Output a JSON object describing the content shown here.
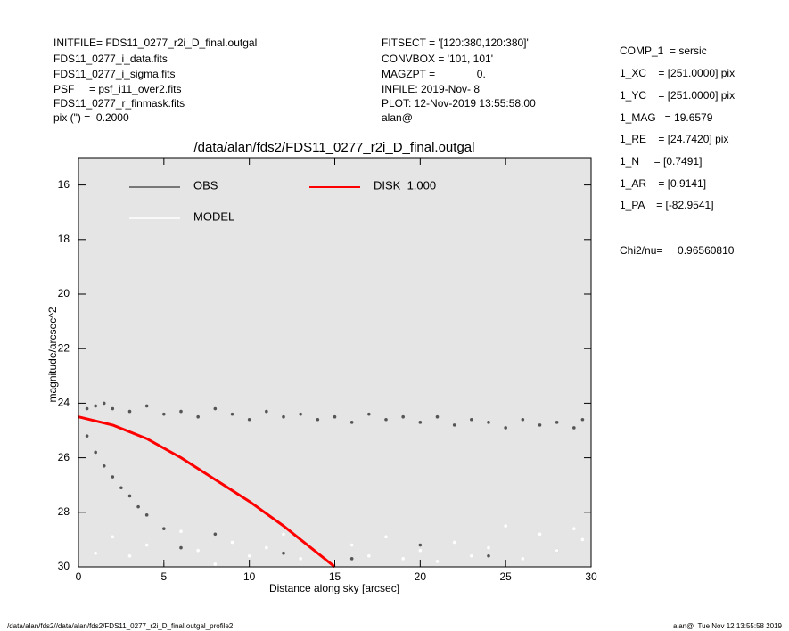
{
  "header": {
    "left": [
      "INITFILE= FDS11_0277_r2i_D_final.outgal",
      "FDS11_0277_i_data.fits",
      "FDS11_0277_i_sigma.fits",
      "PSF     = psf_i11_over2.fits",
      "FDS11_0277_r_finmask.fits",
      "pix (\") =  0.2000"
    ],
    "middle": [
      "FITSECT = '[120:380,120:380]'",
      "CONVBOX = '101, 101'",
      "MAGZPT =              0.",
      "INFILE: 2019-Nov- 8",
      "PLOT: 12-Nov-2019 13:55:58.00",
      "alan@"
    ],
    "right": [
      "COMP_1  = sersic",
      "1_XC    = [251.0000] pix",
      "1_YC    = [251.0000] pix",
      "1_MAG   = 19.6579",
      "1_RE    = [24.7420] pix",
      "1_N     = [0.7491]",
      "1_AR    = [0.9141]",
      "1_PA    = [-82.9541]",
      "Chi2/nu=     0.96560810"
    ]
  },
  "footer": {
    "left": "/data/alan/fds2//data/alan/fds2/FDS11_0277_r2i_D_final.outgal_profile2",
    "right": "alan@  Tue Nov 12 13:55:58 2019"
  },
  "chart_data": {
    "type": "scatter",
    "title": "/data/alan/fds2/FDS11_0277_r2i_D_final.outgal",
    "x_label": "Distance along sky [arcsec]",
    "y_label": "magnitude/arcsec^2",
    "xlim": [
      0,
      30
    ],
    "xticks": [
      0,
      5,
      10,
      15,
      20,
      25,
      30
    ],
    "ylim": [
      30,
      15
    ],
    "yticks": [
      16,
      18,
      20,
      22,
      24,
      26,
      28,
      30
    ],
    "series": [
      {
        "name": "OBS",
        "color": "#555555",
        "x": [
          0.5,
          1,
          1.5,
          2,
          3,
          4,
          5,
          6,
          7,
          8,
          9,
          10,
          11,
          12,
          13,
          14,
          15,
          16,
          17,
          18,
          19,
          20,
          21,
          22,
          23,
          24,
          25,
          26,
          27,
          28,
          29,
          29.5,
          0.5,
          1,
          1.5,
          2,
          2.5,
          3,
          3.5,
          4,
          5,
          6,
          8,
          12,
          16,
          20,
          24,
          28
        ],
        "y": [
          24.2,
          24.1,
          24.0,
          24.2,
          24.3,
          24.1,
          24.4,
          24.3,
          24.5,
          24.2,
          24.4,
          24.6,
          24.3,
          24.5,
          24.4,
          24.6,
          24.5,
          24.7,
          24.4,
          24.6,
          24.5,
          24.7,
          24.5,
          24.8,
          24.6,
          24.7,
          24.9,
          24.6,
          24.8,
          24.7,
          24.9,
          24.6,
          25.2,
          25.8,
          26.3,
          26.7,
          27.1,
          27.4,
          27.8,
          28.1,
          28.6,
          29.3,
          28.8,
          29.5,
          29.7,
          29.2,
          29.6,
          29.4
        ]
      },
      {
        "name": "MODEL",
        "color": "#ffffff",
        "x": [
          1,
          2,
          3,
          4,
          5,
          6,
          7,
          8,
          9,
          10,
          11,
          12,
          13,
          14,
          15,
          16,
          17,
          18,
          19,
          20,
          21,
          22,
          23,
          24,
          25,
          26,
          27,
          28,
          29,
          29.5
        ],
        "y": [
          29.5,
          28.9,
          29.6,
          29.2,
          29.8,
          28.7,
          29.4,
          29.9,
          29.1,
          29.6,
          29.3,
          28.8,
          29.7,
          29.5,
          29.8,
          29.2,
          29.6,
          28.9,
          29.7,
          29.4,
          29.8,
          29.1,
          29.6,
          29.3,
          28.5,
          29.7,
          28.8,
          29.4,
          28.6,
          29.0
        ]
      },
      {
        "name": "DISK  1.000",
        "color": "#ff0000",
        "line": true,
        "x": [
          0,
          2,
          4,
          6,
          8,
          10,
          12,
          13,
          14,
          15
        ],
        "y": [
          24.5,
          24.8,
          25.3,
          26.0,
          26.8,
          27.6,
          28.5,
          29.0,
          29.5,
          30.0
        ]
      }
    ]
  }
}
